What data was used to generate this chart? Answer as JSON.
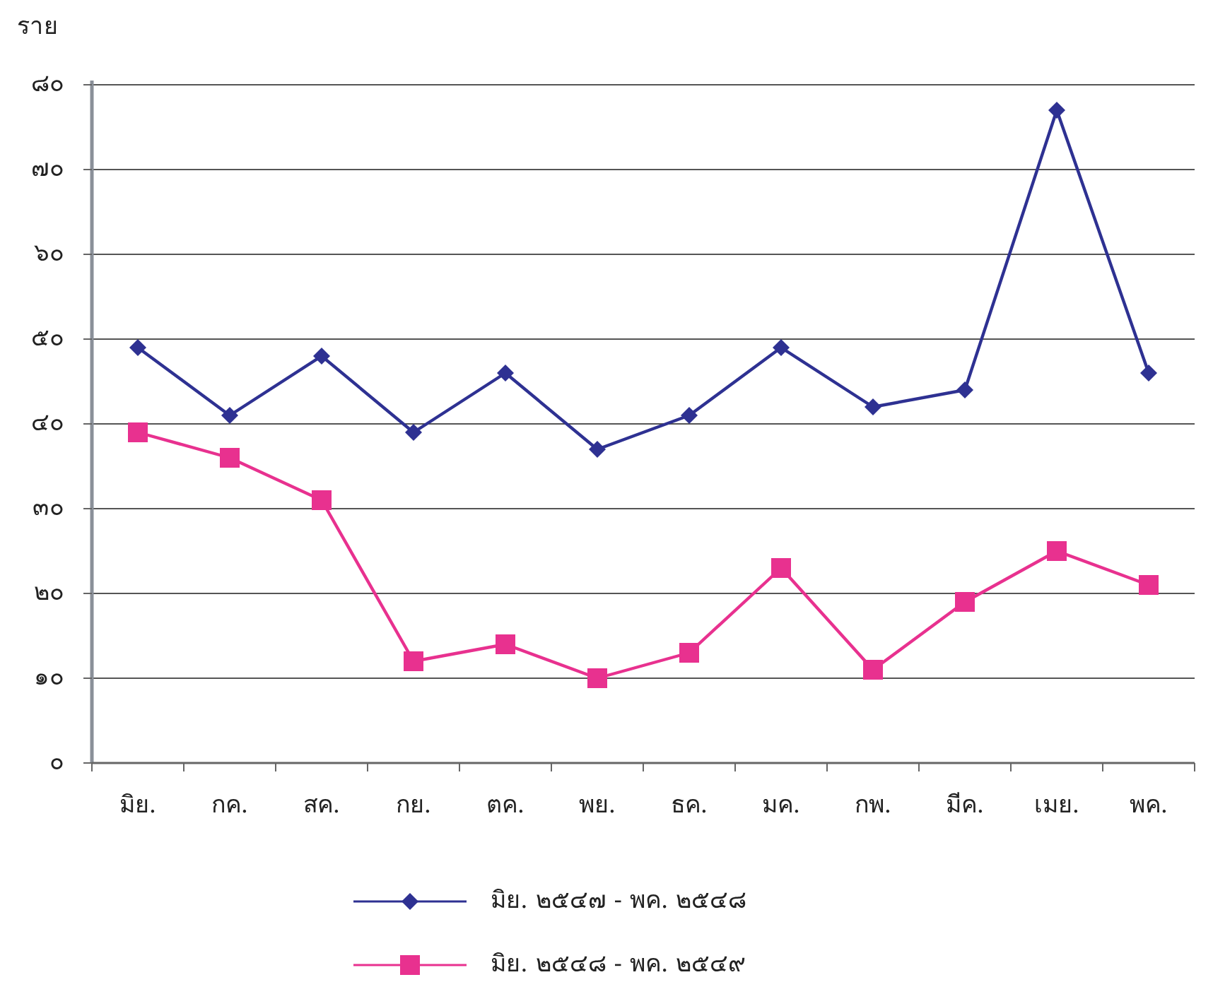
{
  "chart_data": {
    "type": "line",
    "ylabel": "ราย",
    "categories": [
      "มิย.",
      "กค.",
      "สค.",
      "กย.",
      "ตค.",
      "พย.",
      "ธค.",
      "มค.",
      "กพ.",
      "มีค.",
      "เมย.",
      "พค."
    ],
    "series": [
      {
        "name": "มิย. ๒๕๔๗ - พค. ๒๕๔๘",
        "color": "#2e3192",
        "marker": "diamond",
        "values": [
          49,
          41,
          48,
          39,
          46,
          37,
          41,
          49,
          42,
          44,
          77,
          46
        ]
      },
      {
        "name": "มิย. ๒๕๔๘ - พค. ๒๕๔๙",
        "color": "#e8318f",
        "marker": "square",
        "values": [
          39,
          36,
          31,
          12,
          14,
          10,
          13,
          23,
          11,
          19,
          25,
          21
        ]
      }
    ],
    "ylim": [
      0,
      80
    ],
    "yticks": [
      {
        "value": 0,
        "label": "๐"
      },
      {
        "value": 10,
        "label": "๑๐"
      },
      {
        "value": 20,
        "label": "๒๐"
      },
      {
        "value": 30,
        "label": "๓๐"
      },
      {
        "value": 40,
        "label": "๔๐"
      },
      {
        "value": 50,
        "label": "๕๐"
      },
      {
        "value": 60,
        "label": "๖๐"
      },
      {
        "value": 70,
        "label": "๗๐"
      },
      {
        "value": 80,
        "label": "๘๐"
      }
    ],
    "grid": "y",
    "legend": "bottom"
  }
}
